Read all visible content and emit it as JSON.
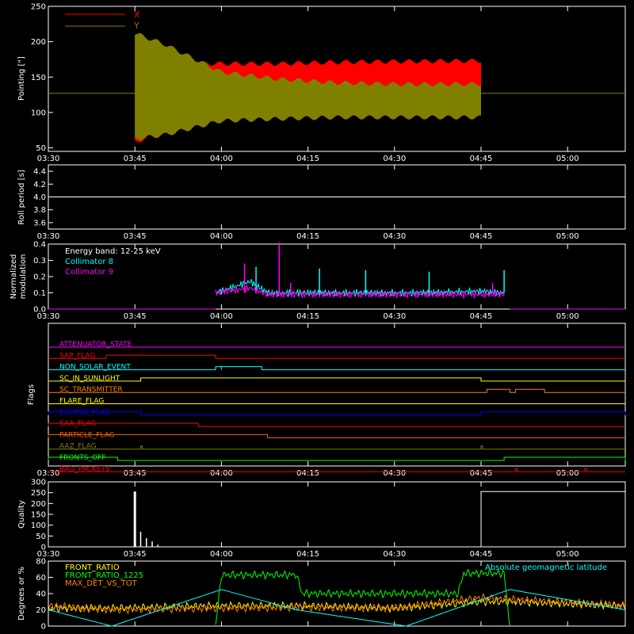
{
  "time_ticks": [
    "03:30",
    "03:45",
    "04:00",
    "04:15",
    "04:30",
    "04:45",
    "05:00"
  ],
  "chart_data": [
    {
      "type": "line",
      "name": "pointing",
      "ylabel": "Pointing [\"]",
      "ylim": [
        45,
        250
      ],
      "yticks": [
        50,
        100,
        150,
        200,
        250
      ],
      "legend": [
        {
          "name": "X",
          "color": "#ff0000"
        },
        {
          "name": "Y",
          "color": "#808000"
        }
      ],
      "baseline": 127,
      "baseline_color": "#808000",
      "data_span": [
        "03:45",
        "04:45"
      ],
      "series": [
        {
          "name": "X",
          "color": "#ff0000",
          "x": [
            "03:45",
            "03:50",
            "03:55",
            "04:00",
            "04:10",
            "04:20",
            "04:30",
            "04:45"
          ],
          "upper": [
            215,
            180,
            172,
            172,
            172,
            174,
            175,
            176
          ],
          "lower": [
            55,
            70,
            80,
            88,
            92,
            94,
            95,
            95
          ]
        },
        {
          "name": "Y",
          "color": "#808000",
          "x": [
            "03:45",
            "03:50",
            "03:55",
            "04:00",
            "04:10",
            "04:20",
            "04:30",
            "04:45"
          ],
          "upper": [
            215,
            200,
            180,
            160,
            150,
            145,
            143,
            143
          ],
          "lower": [
            60,
            65,
            75,
            85,
            88,
            90,
            90,
            90
          ]
        }
      ]
    },
    {
      "type": "line",
      "name": "roll-period",
      "ylabel": "Roll period [s]",
      "ylim": [
        3.5,
        4.5
      ],
      "yticks": [
        "3.6",
        "3.8",
        "4.0",
        "4.2",
        "4.4"
      ],
      "series": [
        {
          "name": "roll",
          "color": "#ffffff",
          "x": [
            "03:30",
            "05:10"
          ],
          "y": [
            4.0,
            4.0
          ]
        }
      ]
    },
    {
      "type": "line",
      "name": "modulation",
      "ylabel": "Normalized modulation",
      "ylim": [
        0.0,
        0.4
      ],
      "yticks": [
        "0.0",
        "0.1",
        "0.2",
        "0.3",
        "0.4"
      ],
      "legend_title": "Energy band: 12-25 keV",
      "series": [
        {
          "name": "Collimator 8",
          "color": "#00ffff",
          "x": [
            "03:59",
            "04:05",
            "04:08",
            "04:15",
            "04:25",
            "04:35",
            "04:45",
            "04:49"
          ],
          "y": [
            0.1,
            0.17,
            0.1,
            0.1,
            0.1,
            0.1,
            0.11,
            0.1
          ],
          "spikes": [
            [
              "04:06",
              0.26
            ],
            [
              "04:17",
              0.25
            ],
            [
              "04:25",
              0.24
            ],
            [
              "04:36",
              0.23
            ],
            [
              "04:49",
              0.24
            ]
          ]
        },
        {
          "name": "Collimator 9",
          "color": "#ff00ff",
          "x": [
            "03:59",
            "04:05",
            "04:08",
            "04:15",
            "04:25",
            "04:35",
            "04:45",
            "04:49"
          ],
          "y": [
            0.1,
            0.13,
            0.09,
            0.09,
            0.09,
            0.09,
            0.09,
            0.09
          ],
          "spikes": [
            [
              "04:04",
              0.28
            ],
            [
              "04:10",
              0.41
            ],
            [
              "04:12",
              0.16
            ],
            [
              "04:47",
              0.16
            ]
          ]
        }
      ],
      "drop_to_zero_after": "04:50"
    },
    {
      "type": "line",
      "name": "flags",
      "ylabel": "Flags",
      "flags": [
        {
          "label": "ATTENUATOR_STATE",
          "color": "#ff00ff",
          "rises": []
        },
        {
          "label": "SAP_FLAG",
          "color": "#ff0000",
          "rises": [
            [
              "03:40",
              "03:59"
            ]
          ]
        },
        {
          "label": "NON_SOLAR_EVENT",
          "color": "#00ffff",
          "rises": [
            [
              "03:59",
              "04:00"
            ],
            [
              "04:00",
              "04:07"
            ]
          ]
        },
        {
          "label": "SC_IN_SUNLIGHT",
          "color": "#ffff00",
          "rises": [
            [
              "03:46",
              "04:45"
            ]
          ]
        },
        {
          "label": "SC_TRANSMITTER",
          "color": "#ff8000",
          "rises": [
            [
              "04:46",
              "04:50"
            ],
            [
              "04:51",
              "04:56"
            ]
          ]
        },
        {
          "label": "FLARE_FLAG",
          "color": "#ffff00",
          "rises": []
        },
        {
          "label": "ECLIPSE_FLAG",
          "color": "#0000ff",
          "rises": [
            [
              "03:30",
              "03:46"
            ],
            [
              "04:45",
              "05:10"
            ]
          ]
        },
        {
          "label": "SAA_FLAG",
          "color": "#ff0000",
          "rises": [
            [
              "03:30",
              "03:56"
            ]
          ]
        },
        {
          "label": "PARTICLE_FLAG",
          "color": "#ff6000",
          "rises": [
            [
              "03:30",
              "04:08"
            ]
          ]
        },
        {
          "label": "AAZ_FLAG",
          "color": "#808000",
          "rises": [
            [
              "03:46",
              "03:46"
            ],
            [
              "04:45",
              "04:45"
            ]
          ]
        },
        {
          "label": "FRONTS_OFF",
          "color": "#00ff00",
          "rises": [
            [
              "03:30",
              "03:42"
            ],
            [
              "04:49",
              "05:10"
            ]
          ]
        },
        {
          "label": "BAD_PACKETS",
          "color": "#ff0000",
          "rises": [
            [
              "04:51",
              "04:51"
            ],
            [
              "05:03",
              "05:03"
            ]
          ]
        }
      ]
    },
    {
      "type": "line",
      "name": "quality",
      "ylabel": "Quality",
      "ylim": [
        0,
        300
      ],
      "yticks": [
        0,
        50,
        100,
        150,
        200,
        250,
        300
      ],
      "series": [
        {
          "name": "quality",
          "color": "#ffffff",
          "x": [
            "03:45",
            "03:46",
            "03:47",
            "03:48",
            "03:49",
            "04:45",
            "05:10"
          ],
          "y": [
            255,
            70,
            40,
            25,
            10,
            255,
            255
          ]
        }
      ]
    },
    {
      "type": "line",
      "name": "ratios",
      "ylabel": "Degrees or %",
      "ylim": [
        0,
        80
      ],
      "yticks": [
        0,
        20,
        40,
        60,
        80
      ],
      "series": [
        {
          "name": "FRONT_RATIO",
          "color": "#ffff00",
          "x": [
            "03:30",
            "03:41",
            "03:59",
            "04:15",
            "04:30",
            "04:45",
            "04:50",
            "05:10"
          ],
          "y": [
            22,
            22,
            25,
            25,
            22,
            30,
            30,
            25
          ]
        },
        {
          "name": "FRONT_RATIO_1225",
          "color": "#00ff00",
          "x": [
            "03:59",
            "04:00",
            "04:13",
            "04:14",
            "04:41",
            "04:42",
            "04:49",
            "04:50"
          ],
          "y": [
            0,
            63,
            63,
            40,
            40,
            65,
            65,
            0
          ]
        },
        {
          "name": "MAX_DET_VS_TOT",
          "color": "#ff8000",
          "x": [
            "03:30",
            "03:41",
            "03:59",
            "04:15",
            "04:30",
            "04:45",
            "05:10"
          ],
          "y": [
            25,
            20,
            22,
            23,
            22,
            35,
            25
          ]
        },
        {
          "name": "Absolute geomagnetic latitude",
          "color": "#00ffff",
          "x": [
            "03:30",
            "03:41",
            "04:00",
            "04:13",
            "04:32",
            "04:50",
            "05:10"
          ],
          "y": [
            20,
            0,
            45,
            20,
            0,
            45,
            20
          ]
        }
      ]
    }
  ]
}
